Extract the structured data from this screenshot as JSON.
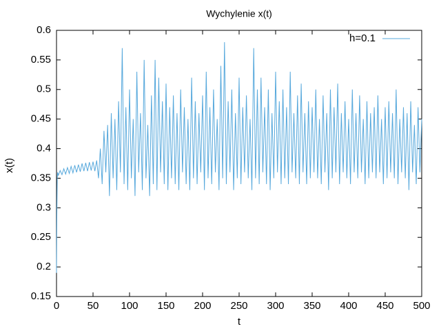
{
  "chart_data": {
    "type": "line",
    "title": "Wychylenie x(t)",
    "x_label": "t",
    "y_label": "x(t)",
    "xlim": [
      0,
      500
    ],
    "xticks": [
      0,
      50,
      100,
      150,
      200,
      250,
      300,
      350,
      400,
      450,
      500
    ],
    "ylim": [
      0.15,
      0.6
    ],
    "yticks": [
      0.15,
      0.2,
      0.25,
      0.3,
      0.35,
      0.4,
      0.45,
      0.5,
      0.55,
      0.6
    ],
    "legend_position": "top-right",
    "x": [
      0,
      0.5,
      1,
      1.5,
      2.5,
      5,
      7.5,
      10,
      12.5,
      15,
      17.5,
      20,
      22.5,
      25,
      27.5,
      30,
      32.5,
      35,
      37.5,
      40,
      42.5,
      45,
      47.5,
      50,
      52.5,
      55,
      57.5,
      60,
      62.5,
      65,
      67.5,
      70,
      72.5,
      75,
      77.5,
      80,
      82.5,
      85,
      87.5,
      90,
      92.5,
      95,
      97.5,
      100,
      102.5,
      105,
      107.5,
      110,
      112.5,
      115,
      117.5,
      120,
      122.5,
      125,
      127.5,
      130,
      132.5,
      135,
      137.5,
      140,
      142.5,
      145,
      147.5,
      150,
      152.5,
      155,
      157.5,
      160,
      162.5,
      165,
      167.5,
      170,
      172.5,
      175,
      177.5,
      180,
      182.5,
      185,
      187.5,
      190,
      192.5,
      195,
      197.5,
      200,
      202.5,
      205,
      207.5,
      210,
      212.5,
      215,
      217.5,
      220,
      222.5,
      225,
      227.5,
      230,
      232.5,
      235,
      237.5,
      240,
      242.5,
      245,
      247.5,
      250,
      252.5,
      255,
      257.5,
      260,
      262.5,
      265,
      267.5,
      270,
      272.5,
      275,
      277.5,
      280,
      282.5,
      285,
      287.5,
      290,
      292.5,
      295,
      297.5,
      300,
      302.5,
      305,
      307.5,
      310,
      312.5,
      315,
      317.5,
      320,
      322.5,
      325,
      327.5,
      330,
      332.5,
      335,
      337.5,
      340,
      342.5,
      345,
      347.5,
      350,
      352.5,
      355,
      357.5,
      360,
      362.5,
      365,
      367.5,
      370,
      372.5,
      375,
      377.5,
      380,
      382.5,
      385,
      387.5,
      390,
      392.5,
      395,
      397.5,
      400,
      402.5,
      405,
      407.5,
      410,
      412.5,
      415,
      417.5,
      420,
      422.5,
      425,
      427.5,
      430,
      432.5,
      435,
      437.5,
      440,
      442.5,
      445,
      447.5,
      450,
      452.5,
      455,
      457.5,
      460,
      462.5,
      465,
      467.5,
      470,
      472.5,
      475,
      477.5,
      480,
      482.5,
      485,
      487.5,
      490,
      492.5,
      495,
      497.5,
      500
    ],
    "series": [
      {
        "name": "h=0.1",
        "color": "#56a8dc",
        "values": [
          0.19,
          0.29,
          0.35,
          0.36,
          0.355,
          0.363,
          0.356,
          0.366,
          0.357,
          0.368,
          0.358,
          0.37,
          0.359,
          0.372,
          0.36,
          0.373,
          0.361,
          0.375,
          0.362,
          0.376,
          0.362,
          0.377,
          0.363,
          0.378,
          0.362,
          0.38,
          0.35,
          0.4,
          0.34,
          0.43,
          0.36,
          0.44,
          0.32,
          0.46,
          0.35,
          0.45,
          0.33,
          0.48,
          0.36,
          0.57,
          0.34,
          0.47,
          0.33,
          0.5,
          0.35,
          0.45,
          0.32,
          0.53,
          0.36,
          0.46,
          0.33,
          0.55,
          0.35,
          0.44,
          0.32,
          0.49,
          0.34,
          0.55,
          0.33,
          0.52,
          0.36,
          0.48,
          0.34,
          0.51,
          0.33,
          0.47,
          0.35,
          0.49,
          0.34,
          0.46,
          0.33,
          0.5,
          0.36,
          0.47,
          0.34,
          0.45,
          0.33,
          0.52,
          0.35,
          0.48,
          0.34,
          0.46,
          0.36,
          0.49,
          0.33,
          0.53,
          0.35,
          0.47,
          0.34,
          0.5,
          0.36,
          0.45,
          0.33,
          0.54,
          0.35,
          0.58,
          0.34,
          0.48,
          0.36,
          0.5,
          0.33,
          0.46,
          0.35,
          0.52,
          0.34,
          0.47,
          0.36,
          0.49,
          0.35,
          0.45,
          0.33,
          0.57,
          0.35,
          0.5,
          0.34,
          0.52,
          0.36,
          0.47,
          0.34,
          0.5,
          0.33,
          0.46,
          0.35,
          0.53,
          0.36,
          0.48,
          0.34,
          0.5,
          0.35,
          0.47,
          0.34,
          0.53,
          0.36,
          0.46,
          0.35,
          0.49,
          0.34,
          0.51,
          0.36,
          0.46,
          0.34,
          0.48,
          0.35,
          0.47,
          0.36,
          0.5,
          0.35,
          0.45,
          0.34,
          0.49,
          0.36,
          0.46,
          0.33,
          0.5,
          0.35,
          0.47,
          0.36,
          0.51,
          0.34,
          0.46,
          0.36,
          0.48,
          0.35,
          0.45,
          0.34,
          0.5,
          0.36,
          0.46,
          0.35,
          0.49,
          0.36,
          0.45,
          0.34,
          0.48,
          0.35,
          0.46,
          0.36,
          0.47,
          0.35,
          0.49,
          0.36,
          0.45,
          0.34,
          0.47,
          0.35,
          0.48,
          0.36,
          0.46,
          0.35,
          0.5,
          0.34,
          0.45,
          0.36,
          0.47,
          0.35,
          0.46,
          0.33,
          0.48,
          0.36,
          0.44,
          0.34,
          0.47,
          0.36,
          0.45
        ]
      }
    ]
  }
}
